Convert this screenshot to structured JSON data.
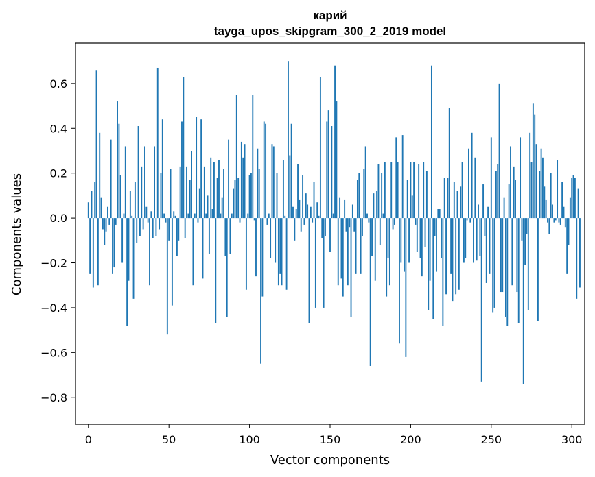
{
  "chart_data": {
    "type": "bar",
    "title": "карий",
    "subtitle": "tayga_upos_skipgram_300_2_2019 model",
    "xlabel": "Vector components",
    "ylabel": "Components values",
    "xlim": [
      -8,
      308
    ],
    "ylim": [
      -0.92,
      0.78
    ],
    "xticks": [
      0,
      50,
      100,
      150,
      200,
      250,
      300
    ],
    "xtick_labels": [
      "0",
      "50",
      "100",
      "150",
      "200",
      "250",
      "300"
    ],
    "yticks": [
      -0.8,
      -0.6,
      -0.4,
      -0.2,
      0.0,
      0.2,
      0.4,
      0.6
    ],
    "ytick_labels": [
      "−0.8",
      "−0.6",
      "−0.4",
      "−0.2",
      "0.0",
      "0.2",
      "0.4",
      "0.6"
    ],
    "bar_color": "#1f77b4",
    "bar_width": 0.8,
    "values": [
      0.07,
      -0.25,
      0.12,
      -0.31,
      0.16,
      0.66,
      -0.3,
      0.38,
      0.09,
      -0.05,
      -0.12,
      -0.06,
      0.05,
      -0.03,
      0.35,
      -0.25,
      -0.22,
      -0.03,
      0.52,
      0.42,
      0.19,
      -0.2,
      0.02,
      0.32,
      -0.48,
      -0.28,
      0.12,
      0.01,
      -0.36,
      0.16,
      -0.11,
      0.41,
      -0.08,
      0.23,
      -0.05,
      0.32,
      0.05,
      -0.02,
      -0.3,
      0.03,
      -0.09,
      0.32,
      -0.08,
      0.67,
      -0.05,
      0.2,
      0.44,
      0.02,
      -0.02,
      -0.52,
      -0.1,
      0.22,
      -0.39,
      0.03,
      0.01,
      -0.17,
      -0.1,
      0.23,
      0.43,
      0.63,
      -0.09,
      0.23,
      0.02,
      0.17,
      0.3,
      -0.3,
      0.02,
      0.45,
      -0.02,
      0.13,
      0.44,
      -0.27,
      0.23,
      0.02,
      0.1,
      -0.16,
      0.27,
      0.04,
      0.25,
      -0.47,
      0.18,
      0.26,
      0.02,
      0.09,
      0.22,
      -0.17,
      -0.44,
      0.35,
      -0.16,
      0.02,
      0.13,
      0.17,
      0.55,
      0.18,
      -0.02,
      0.34,
      0.27,
      0.33,
      -0.32,
      0.02,
      0.19,
      0.2,
      0.55,
      -0.01,
      -0.26,
      0.31,
      0.22,
      -0.65,
      -0.35,
      0.43,
      0.42,
      -0.03,
      0.02,
      -0.18,
      0.33,
      0.32,
      -0.2,
      0.2,
      -0.3,
      -0.25,
      -0.3,
      0.26,
      0.01,
      -0.32,
      0.7,
      0.28,
      0.42,
      0.05,
      -0.1,
      0.04,
      0.24,
      0.08,
      -0.06,
      0.19,
      -0.03,
      0.11,
      0.06,
      -0.47,
      0.05,
      -0.02,
      0.16,
      -0.4,
      0.07,
      0.01,
      0.63,
      -0.09,
      -0.4,
      -0.08,
      0.43,
      0.48,
      -0.15,
      0.41,
      0.02,
      0.68,
      0.52,
      -0.3,
      0.09,
      -0.27,
      -0.35,
      0.08,
      -0.06,
      -0.3,
      -0.04,
      -0.44,
      0.06,
      -0.06,
      -0.25,
      0.17,
      0.2,
      -0.25,
      -0.08,
      0.22,
      0.32,
      0.02,
      -0.02,
      -0.66,
      -0.17,
      0.11,
      -0.28,
      0.12,
      0.24,
      -0.12,
      0.2,
      0.02,
      0.25,
      -0.35,
      -0.18,
      -0.3,
      0.25,
      -0.05,
      -0.03,
      0.36,
      0.25,
      -0.56,
      -0.2,
      0.37,
      -0.24,
      -0.62,
      0.17,
      -0.2,
      0.25,
      0.1,
      0.25,
      -0.03,
      -0.15,
      0.24,
      -0.18,
      -0.26,
      0.25,
      -0.13,
      0.21,
      -0.41,
      -0.28,
      0.68,
      -0.45,
      -0.08,
      -0.24,
      0.04,
      0.04,
      -0.18,
      -0.48,
      0.18,
      -0.34,
      0.18,
      0.49,
      -0.25,
      -0.37,
      0.16,
      -0.34,
      0.12,
      -0.32,
      0.14,
      0.25,
      -0.2,
      -0.18,
      -0.01,
      0.31,
      -0.02,
      0.38,
      -0.2,
      0.27,
      -0.19,
      0.06,
      -0.17,
      -0.73,
      0.15,
      -0.08,
      -0.29,
      0.05,
      -0.25,
      0.36,
      -0.42,
      -0.4,
      0.21,
      0.24,
      0.6,
      -0.33,
      -0.33,
      0.09,
      -0.44,
      -0.48,
      0.15,
      0.32,
      -0.3,
      0.23,
      0.17,
      -0.33,
      -0.47,
      0.36,
      -0.1,
      -0.74,
      -0.21,
      -0.07,
      -0.41,
      0.38,
      0.25,
      0.51,
      0.46,
      0.33,
      -0.46,
      0.21,
      0.31,
      0.27,
      0.14,
      0.08,
      -0.02,
      -0.07,
      0.2,
      0.06,
      -0.02,
      -0.01,
      0.26,
      -0.02,
      -0.03,
      0.16,
      0.05,
      -0.04,
      -0.25,
      -0.12,
      0.09,
      0.18,
      0.19,
      0.18,
      -0.36,
      0.13,
      -0.31
    ]
  }
}
